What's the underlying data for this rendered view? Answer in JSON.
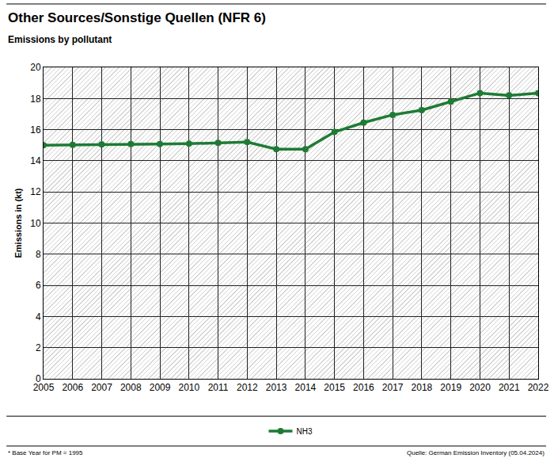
{
  "chart_data": {
    "type": "line",
    "title": "Other Sources/Sonstige Quellen (NFR 6)",
    "subtitle": "Emissions by pollutant",
    "y_label": "Emissions in (kt)",
    "x": [
      2005,
      2006,
      2007,
      2008,
      2009,
      2010,
      2011,
      2012,
      2013,
      2014,
      2015,
      2016,
      2017,
      2018,
      2019,
      2020,
      2021,
      2022
    ],
    "series": [
      {
        "name": "NH3",
        "color": "#1e7b34",
        "marker": "circle",
        "values": [
          15.0,
          15.03,
          15.05,
          15.07,
          15.08,
          15.1,
          15.15,
          15.2,
          14.75,
          14.75,
          15.85,
          16.45,
          16.95,
          17.25,
          17.8,
          18.35,
          18.2,
          18.35
        ]
      }
    ],
    "xlim": [
      2005,
      2022
    ],
    "xticks": [
      2005,
      2006,
      2007,
      2008,
      2009,
      2010,
      2011,
      2012,
      2013,
      2014,
      2015,
      2016,
      2017,
      2018,
      2019,
      2020,
      2021,
      2022
    ],
    "ylim": [
      0,
      20
    ],
    "yticks": [
      0,
      2,
      4,
      6,
      8,
      10,
      12,
      14,
      16,
      18,
      20
    ],
    "grid": true,
    "legend": "bottom",
    "annotations": [
      "* Base Year for PM = 1995",
      "Quelle: German Emission Inventory (05.04.2024)"
    ]
  }
}
